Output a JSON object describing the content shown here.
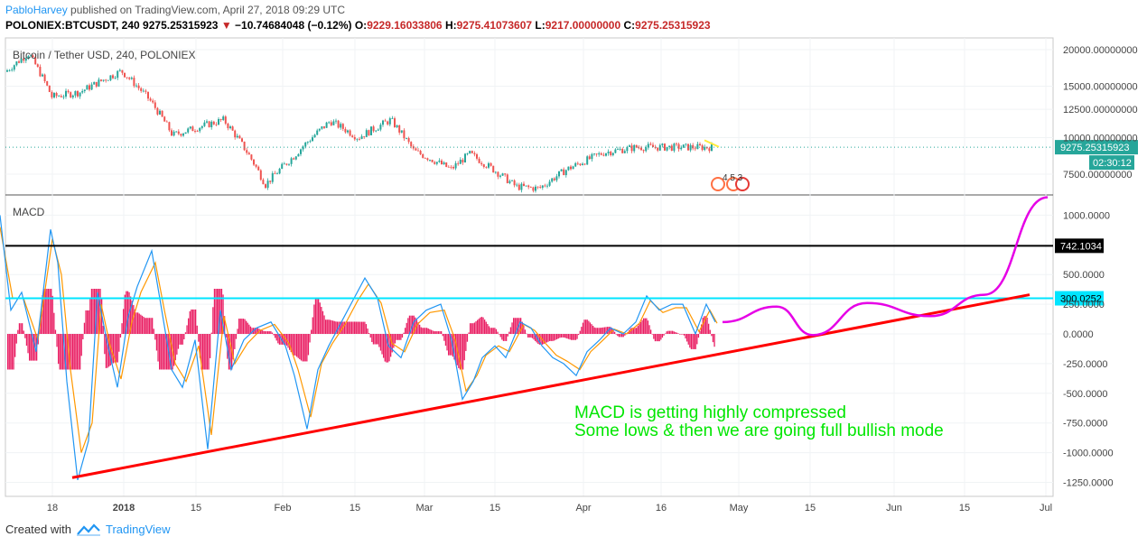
{
  "header": {
    "author": "PabloHarvey",
    "published_text": "published on TradingView.com, April 27, 2018 09:29 UTC",
    "symbol_line": "POLONIEX:BTCUSDT, 240",
    "last": "9275.25315923",
    "change": "−10.74684048 (−0.12%)",
    "o_label": "O:",
    "o": "9229.16033806",
    "h_label": "H:",
    "h": "9275.41073607",
    "l_label": "L:",
    "l": "9217.00000000",
    "c_label": "C:",
    "c": "9275.25315923"
  },
  "footer": {
    "created_with": "Created with",
    "brand": "TradingView"
  },
  "colors": {
    "up": "#26a69a",
    "down": "#ef5350",
    "macd": "#2196f3",
    "signal": "#ff9800",
    "hist": "#e91e63",
    "trend": "#ff0000",
    "projection": "#e600e6",
    "annotation": "#00e600",
    "cyan": "#00e5ff"
  },
  "chart_data": [
    {
      "type": "candlestick",
      "title": "Bitcoin / Tether USD, 240, POLONIEX",
      "y_ticks": [
        "20000.00000000",
        "15000.00000000",
        "12500.00000000",
        "10000.00000000",
        "7500.00000000"
      ],
      "y_tick_values": [
        20000,
        15000,
        12500,
        10000,
        7500
      ],
      "last_price_label": "9275.25315923",
      "countdown_label": "02:30:12",
      "events_label": "4 5 3",
      "x_labels": [
        "18",
        "2018",
        "15",
        "Feb",
        "15",
        "Mar",
        "15",
        "Apr",
        "16",
        "May",
        "15",
        "Jun",
        "15",
        "Jul"
      ],
      "series": [
        {
          "date": "2017-12-12",
          "close": 16800
        },
        {
          "date": "2017-12-17",
          "close": 19400
        },
        {
          "date": "2017-12-22",
          "close": 13800
        },
        {
          "date": "2017-12-28",
          "close": 14300
        },
        {
          "date": "2018-01-06",
          "close": 16900
        },
        {
          "date": "2018-01-12",
          "close": 13500
        },
        {
          "date": "2018-01-17",
          "close": 10200
        },
        {
          "date": "2018-01-28",
          "close": 11500
        },
        {
          "date": "2018-02-06",
          "close": 6900
        },
        {
          "date": "2018-02-12",
          "close": 8600
        },
        {
          "date": "2018-02-20",
          "close": 11400
        },
        {
          "date": "2018-02-26",
          "close": 10000
        },
        {
          "date": "2018-03-05",
          "close": 11500
        },
        {
          "date": "2018-03-10",
          "close": 9000
        },
        {
          "date": "2018-03-18",
          "close": 7800
        },
        {
          "date": "2018-03-22",
          "close": 8800
        },
        {
          "date": "2018-04-01",
          "close": 6800
        },
        {
          "date": "2018-04-06",
          "close": 6700
        },
        {
          "date": "2018-04-12",
          "close": 7800
        },
        {
          "date": "2018-04-20",
          "close": 8900
        },
        {
          "date": "2018-04-27",
          "close": 9275
        }
      ]
    },
    {
      "type": "line",
      "title": "MACD",
      "y_ticks": [
        "1000.0000",
        "500.0000",
        "250.0000",
        "0.0000",
        "-250.0000",
        "-500.0000",
        "-750.0000",
        "-1000.0000",
        "-1250.0000"
      ],
      "y_tick_values": [
        1000,
        500,
        250,
        0,
        -250,
        -500,
        -750,
        -1000,
        -1250
      ],
      "hlines": [
        {
          "value": 742.1034,
          "label": "742.1034",
          "color": "#000000"
        },
        {
          "value": 300.0252,
          "label": "300.0252",
          "color": "#00e5ff"
        }
      ],
      "series": [
        {
          "values": [
            [
              0,
              1000
            ],
            [
              12,
              200
            ],
            [
              24,
              350
            ],
            [
              40,
              -150
            ],
            [
              56,
              880
            ],
            [
              64,
              600
            ],
            [
              74,
              -400
            ],
            [
              86,
              -1230
            ],
            [
              98,
              -900
            ],
            [
              108,
              350
            ],
            [
              118,
              -50
            ],
            [
              130,
              -450
            ],
            [
              142,
              150
            ],
            [
              152,
              400
            ],
            [
              168,
              700
            ],
            [
              178,
              250
            ],
            [
              190,
              -300
            ],
            [
              202,
              -450
            ],
            [
              216,
              -50
            ],
            [
              230,
              -970
            ],
            [
              244,
              200
            ],
            [
              256,
              -300
            ],
            [
              270,
              -50
            ],
            [
              284,
              50
            ],
            [
              300,
              100
            ],
            [
              316,
              -100
            ],
            [
              326,
              -350
            ],
            [
              340,
              -800
            ],
            [
              352,
              -300
            ],
            [
              364,
              -100
            ],
            [
              378,
              100
            ],
            [
              392,
              300
            ],
            [
              404,
              470
            ],
            [
              418,
              300
            ],
            [
              430,
              -100
            ],
            [
              444,
              -200
            ],
            [
              458,
              100
            ],
            [
              472,
              200
            ],
            [
              488,
              250
            ],
            [
              500,
              -50
            ],
            [
              512,
              -550
            ],
            [
              524,
              -400
            ],
            [
              534,
              -200
            ],
            [
              548,
              -100
            ],
            [
              560,
              -200
            ],
            [
              576,
              100
            ],
            [
              588,
              50
            ],
            [
              600,
              -100
            ],
            [
              612,
              -200
            ],
            [
              624,
              -250
            ],
            [
              638,
              -350
            ],
            [
              650,
              -150
            ],
            [
              664,
              -50
            ],
            [
              676,
              50
            ],
            [
              690,
              0
            ],
            [
              704,
              100
            ],
            [
              716,
              320
            ],
            [
              730,
              200
            ],
            [
              744,
              250
            ],
            [
              756,
              250
            ],
            [
              770,
              0
            ],
            [
              782,
              250
            ],
            [
              792,
              100
            ]
          ]
        },
        {
          "values": [
            [
              0,
              900
            ],
            [
              14,
              300
            ],
            [
              26,
              300
            ],
            [
              42,
              -50
            ],
            [
              58,
              800
            ],
            [
              68,
              500
            ],
            [
              78,
              -300
            ],
            [
              90,
              -1000
            ],
            [
              102,
              -750
            ],
            [
              112,
              250
            ],
            [
              122,
              -100
            ],
            [
              134,
              -380
            ],
            [
              146,
              100
            ],
            [
              156,
              350
            ],
            [
              172,
              600
            ],
            [
              182,
              200
            ],
            [
              194,
              -250
            ],
            [
              206,
              -400
            ],
            [
              220,
              -100
            ],
            [
              234,
              -850
            ],
            [
              248,
              150
            ],
            [
              260,
              -250
            ],
            [
              274,
              -80
            ],
            [
              288,
              30
            ],
            [
              304,
              80
            ],
            [
              320,
              -80
            ],
            [
              330,
              -300
            ],
            [
              344,
              -700
            ],
            [
              356,
              -250
            ],
            [
              368,
              -80
            ],
            [
              382,
              80
            ],
            [
              396,
              280
            ],
            [
              408,
              420
            ],
            [
              422,
              260
            ],
            [
              434,
              -80
            ],
            [
              448,
              -150
            ],
            [
              462,
              80
            ],
            [
              476,
              180
            ],
            [
              492,
              200
            ],
            [
              504,
              -50
            ],
            [
              516,
              -480
            ],
            [
              528,
              -350
            ],
            [
              538,
              -180
            ],
            [
              552,
              -100
            ],
            [
              564,
              -150
            ],
            [
              580,
              80
            ],
            [
              592,
              30
            ],
            [
              604,
              -80
            ],
            [
              616,
              -180
            ],
            [
              628,
              -230
            ],
            [
              642,
              -300
            ],
            [
              654,
              -150
            ],
            [
              668,
              -50
            ],
            [
              680,
              40
            ],
            [
              694,
              0
            ],
            [
              708,
              90
            ],
            [
              720,
              280
            ],
            [
              734,
              180
            ],
            [
              748,
              220
            ],
            [
              760,
              220
            ],
            [
              774,
              20
            ],
            [
              786,
              200
            ],
            [
              794,
              90
            ]
          ]
        }
      ],
      "histogram_range": [
        -300,
        380
      ],
      "trendline": [
        [
          80,
          -1210
        ],
        [
          1140,
          330
        ]
      ],
      "projection": [
        [
          800,
          100
        ],
        [
          860,
          230
        ],
        [
          900,
          -10
        ],
        [
          960,
          260
        ],
        [
          1030,
          150
        ],
        [
          1090,
          330
        ],
        [
          1160,
          1150
        ]
      ],
      "annotation": [
        "MACD is getting highly compressed",
        "Some lows & then we are going full bullish mode"
      ]
    }
  ]
}
